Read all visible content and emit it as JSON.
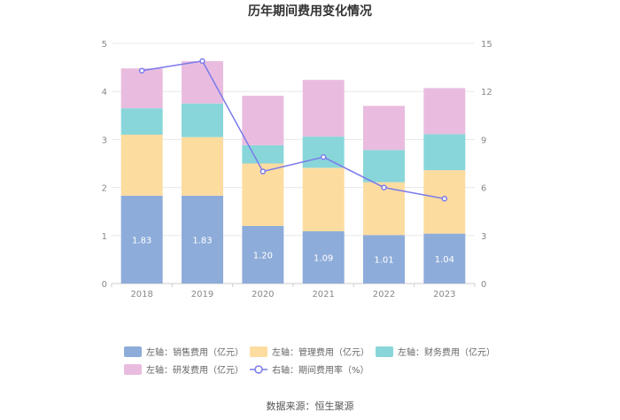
{
  "chart_data": {
    "type": "bar",
    "stacked": true,
    "title": "历年期间费用变化情况",
    "categories": [
      "2018",
      "2019",
      "2020",
      "2021",
      "2022",
      "2023"
    ],
    "series": [
      {
        "name": "左轴：销售费用（亿元）",
        "axis": "left",
        "color": "#8eacd9",
        "values": [
          1.83,
          1.83,
          1.2,
          1.09,
          1.01,
          1.04
        ],
        "labels": [
          "1.83",
          "1.83",
          "1.20",
          "1.09",
          "1.01",
          "1.04"
        ]
      },
      {
        "name": "左轴：管理费用（亿元）",
        "axis": "left",
        "color": "#fddca0",
        "values": [
          1.27,
          1.22,
          1.3,
          1.32,
          1.1,
          1.32
        ]
      },
      {
        "name": "左轴：财务费用（亿元）",
        "axis": "left",
        "color": "#88d6d9",
        "values": [
          0.55,
          0.7,
          0.38,
          0.65,
          0.67,
          0.75
        ]
      },
      {
        "name": "左轴：研发费用（亿元）",
        "axis": "left",
        "color": "#e9bcdf",
        "values": [
          0.83,
          0.88,
          1.03,
          1.18,
          0.92,
          0.96
        ]
      },
      {
        "name": "右轴：期间费用率（%）",
        "axis": "right",
        "type": "line",
        "color": "#7b7bea",
        "values": [
          13.3,
          13.9,
          7.0,
          7.9,
          6.0,
          5.3
        ]
      }
    ],
    "left_axis": {
      "min": 0,
      "max": 5,
      "ticks": [
        "0",
        "1",
        "2",
        "3",
        "4",
        "5"
      ]
    },
    "right_axis": {
      "min": 0,
      "max": 15,
      "ticks": [
        "0",
        "3",
        "6",
        "9",
        "12",
        "15"
      ]
    },
    "legend_position": "bottom"
  },
  "source": "数据来源：恒生聚源"
}
